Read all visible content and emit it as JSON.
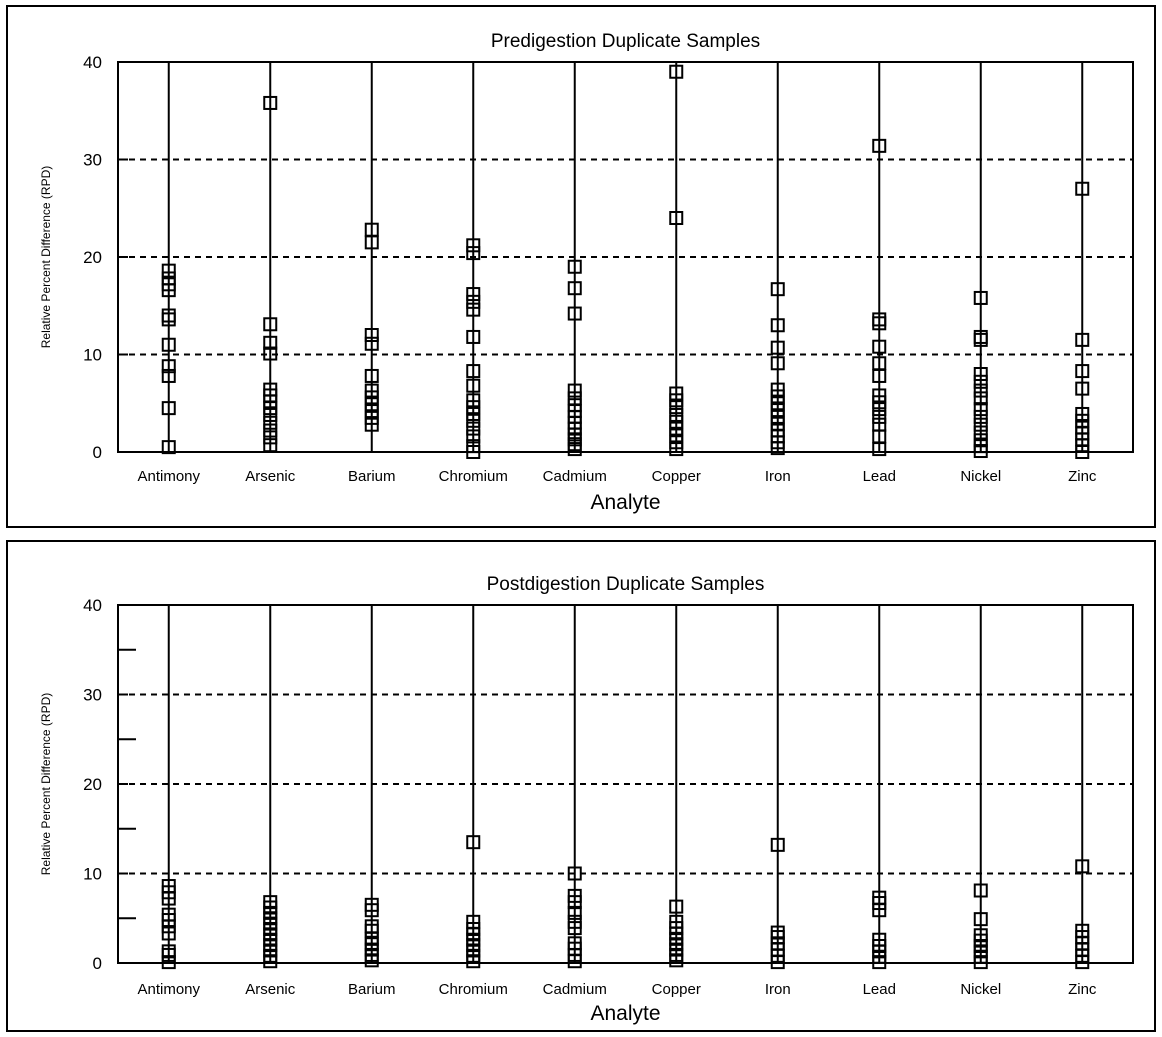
{
  "chart_data": [
    {
      "type": "scatter",
      "title": "Predigestion Duplicate Samples",
      "xlabel": "Analyte",
      "ylabel": "Relative Percent Difference (RPD)",
      "ylim": [
        0,
        40
      ],
      "yticks": [
        "0",
        "10",
        "20",
        "30",
        "40"
      ],
      "grid": "dashed horizontal lines at 10, 20, 30",
      "marker": "open square",
      "categories": [
        "Antimony",
        "Arsenic",
        "Barium",
        "Chromium",
        "Cadmium",
        "Copper",
        "Iron",
        "Lead",
        "Nickel",
        "Zinc"
      ],
      "values": [
        [
          0.5,
          4.5,
          7.8,
          8.8,
          11,
          13.6,
          14,
          16.6,
          17.2,
          17.8,
          18.6
        ],
        [
          0.7,
          1.5,
          2.2,
          3,
          3.8,
          4.5,
          5.2,
          5.8,
          6.4,
          10.1,
          11.2,
          13.1,
          35.8
        ],
        [
          2.8,
          3.5,
          4.2,
          4.9,
          5.6,
          6.3,
          7.8,
          11.1,
          12,
          21.5,
          22.8
        ],
        [
          0,
          0.6,
          1.6,
          2.4,
          3.2,
          3.9,
          4.6,
          5.3,
          6.8,
          8.3,
          11.8,
          14.6,
          15.4,
          16.2,
          20.4,
          21.2
        ],
        [
          0.3,
          0.8,
          1.3,
          1.8,
          2.4,
          3,
          3.6,
          4.2,
          4.8,
          5.5,
          6.3,
          14.2,
          16.8,
          19
        ],
        [
          0.3,
          1,
          1.7,
          2.4,
          3.1,
          3.8,
          4.6,
          5.3,
          6,
          24,
          39
        ],
        [
          0.4,
          1,
          1.6,
          2.2,
          2.9,
          3.6,
          4.3,
          5,
          5.7,
          6.4,
          9.1,
          10.7,
          13,
          16.7
        ],
        [
          0.3,
          1.6,
          2.8,
          3.6,
          4.4,
          5.1,
          5.8,
          7.8,
          9.1,
          10.8,
          13.2,
          13.6,
          31.4
        ],
        [
          0.1,
          0.6,
          1.2,
          2,
          2.8,
          3.6,
          4.4,
          5.5,
          6.3,
          7.2,
          8,
          11.5,
          11.8,
          15.8
        ],
        [
          0,
          0.7,
          1.3,
          1.9,
          2.5,
          3.2,
          3.9,
          6.5,
          8.3,
          11.5,
          27
        ]
      ]
    },
    {
      "type": "scatter",
      "title": "Postdigestion Duplicate Samples",
      "xlabel": "Analyte",
      "ylabel": "Relative Percent Difference (RPD)",
      "ylim": [
        0,
        40
      ],
      "yticks": [
        "0",
        "10",
        "20",
        "30",
        "40"
      ],
      "grid": "dashed horizontal lines at 10, 20, 30",
      "marker": "open square",
      "categories": [
        "Antimony",
        "Arsenic",
        "Barium",
        "Chromium",
        "Cadmium",
        "Copper",
        "Iron",
        "Lead",
        "Nickel",
        "Zinc"
      ],
      "values": [
        [
          0.1,
          0.9,
          1.3,
          3.3,
          4.1,
          4.8,
          5.4,
          7.2,
          7.9,
          8.6
        ],
        [
          0.2,
          0.8,
          1.4,
          2,
          2.6,
          3.2,
          3.8,
          4.4,
          5,
          5.6,
          6.2,
          6.8
        ],
        [
          0.3,
          0.9,
          1.5,
          2.1,
          2.7,
          3.6,
          4.1,
          5.9,
          6.5
        ],
        [
          0.2,
          0.8,
          1.4,
          2,
          2.6,
          3.2,
          3.8,
          4.6,
          13.5
        ],
        [
          0.2,
          0.9,
          1.6,
          2.2,
          3.9,
          4.6,
          5.6,
          6.8,
          7.5,
          10
        ],
        [
          0.3,
          0.9,
          1.5,
          2.1,
          2.7,
          3.3,
          3.9,
          4.6,
          6.3
        ],
        [
          0.1,
          0.8,
          1.5,
          2.2,
          2.9,
          3.4,
          13.2
        ],
        [
          0.1,
          0.7,
          1.3,
          1.9,
          2.6,
          5.9,
          6.7,
          7.3
        ],
        [
          0.1,
          0.7,
          1.3,
          1.9,
          2.5,
          3.1,
          4.9,
          8.1
        ],
        [
          0.1,
          0.8,
          1.5,
          2.2,
          2.9,
          3.6,
          10.8
        ]
      ]
    }
  ]
}
